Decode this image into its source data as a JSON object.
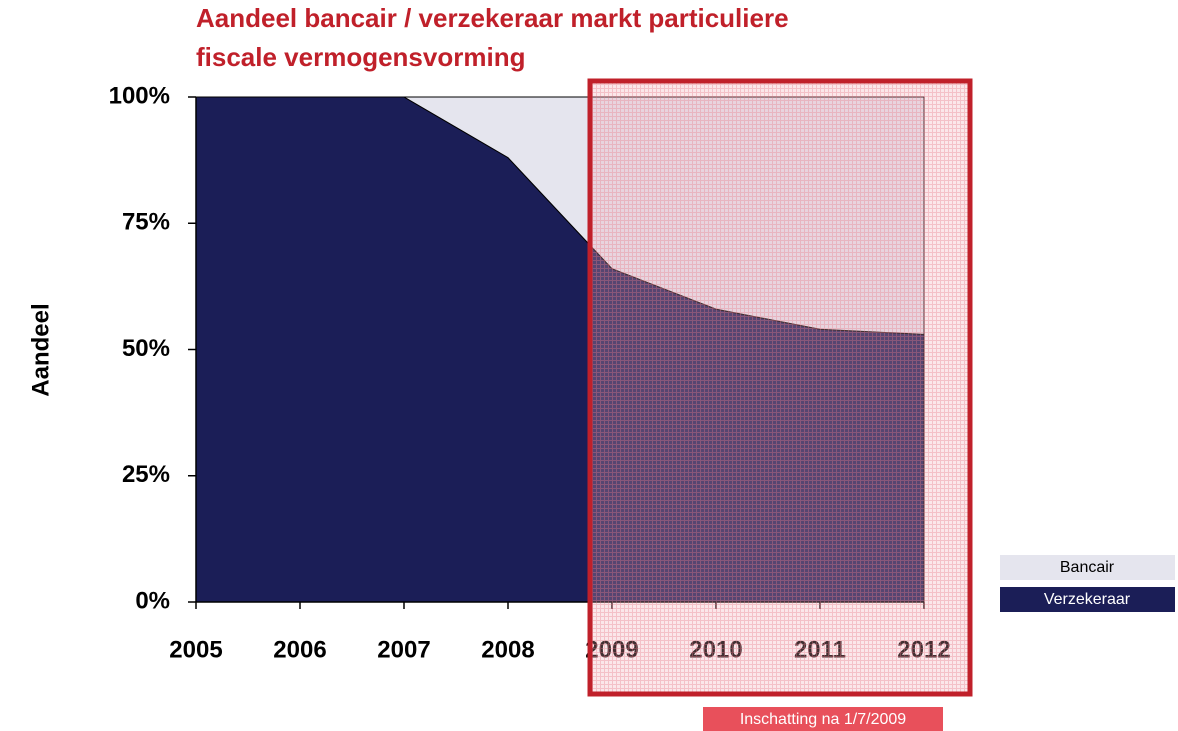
{
  "chart_data": {
    "type": "stacked_area",
    "title": [
      "Aandeel bancair / verzekeraar markt particuliere",
      "fiscale vermogensvorming"
    ],
    "y_label": "Aandeel",
    "categories": [
      "2005",
      "2006",
      "2007",
      "2008",
      "2009",
      "2010",
      "2011",
      "2012"
    ],
    "series": [
      {
        "name": "Verzekeraar",
        "color": "#1b1e57",
        "values": [
          100,
          100,
          100,
          88,
          66,
          58,
          54,
          53
        ]
      },
      {
        "name": "Bancair",
        "color": "#e5e5ee",
        "values": [
          0,
          0,
          0,
          12,
          34,
          42,
          46,
          47
        ]
      }
    ],
    "ylim": [
      0,
      100
    ],
    "yticks": [
      {
        "value": 0,
        "label": "0%"
      },
      {
        "value": 25,
        "label": "25%"
      },
      {
        "value": 50,
        "label": "50%"
      },
      {
        "value": 75,
        "label": "75%"
      },
      {
        "value": 100,
        "label": "100%"
      }
    ],
    "annotation": "Inschatting na 1/7/2009",
    "legend": "right"
  }
}
